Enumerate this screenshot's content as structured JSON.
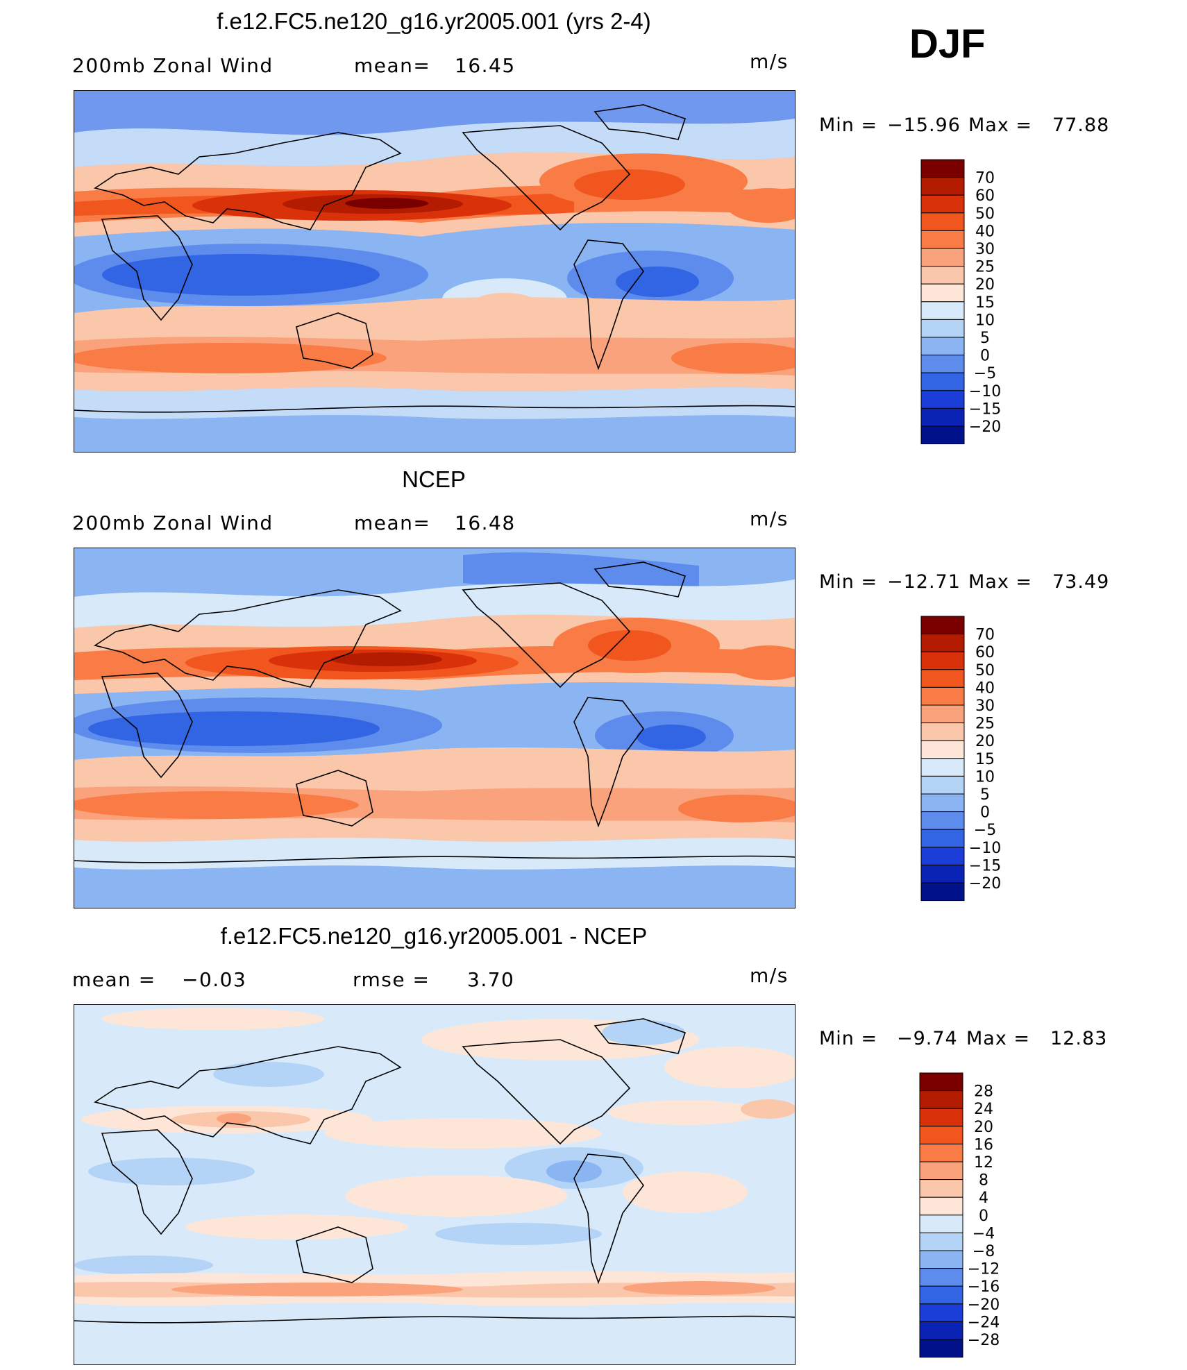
{
  "season": "DJF",
  "panels": [
    {
      "title": "f.e12.FC5.ne120_g16.yr2005.001 (yrs 2-4)",
      "left_label": "200mb Zonal Wind",
      "mid_label": "mean=",
      "mid_value": "16.45",
      "units": "m/s",
      "min_label": "Min  =",
      "min_value": "−15.96",
      "max_label": "Max  =",
      "max_value": "77.88",
      "map_depiction": "model",
      "colorbar": {
        "labels": [
          "70",
          "60",
          "50",
          "40",
          "30",
          "25",
          "20",
          "15",
          "10",
          "5",
          "0",
          "−5",
          "−10",
          "−15",
          "−20"
        ],
        "colors": [
          "#7a0000",
          "#b31c00",
          "#d9320a",
          "#f0561e",
          "#f97c46",
          "#f9a27c",
          "#fbc7ab",
          "#fde6d8",
          "#d8eafa",
          "#b4d4f7",
          "#8bb4f2",
          "#5e8ced",
          "#3265e4",
          "#1a3ed7",
          "#0b23b5",
          "#00118a"
        ]
      }
    },
    {
      "title": "NCEP",
      "left_label": "200mb Zonal Wind",
      "mid_label": "mean=",
      "mid_value": "16.48",
      "units": "m/s",
      "min_label": "Min  =",
      "min_value": "−12.71",
      "max_label": "Max  =",
      "max_value": "73.49",
      "map_depiction": "observation",
      "colorbar": {
        "labels": [
          "70",
          "60",
          "50",
          "40",
          "30",
          "25",
          "20",
          "15",
          "10",
          "5",
          "0",
          "−5",
          "−10",
          "−15",
          "−20"
        ],
        "colors": [
          "#7a0000",
          "#b31c00",
          "#d9320a",
          "#f0561e",
          "#f97c46",
          "#f9a27c",
          "#fbc7ab",
          "#fde6d8",
          "#d8eafa",
          "#b4d4f7",
          "#8bb4f2",
          "#5e8ced",
          "#3265e4",
          "#1a3ed7",
          "#0b23b5",
          "#00118a"
        ]
      }
    },
    {
      "title": "f.e12.FC5.ne120_g16.yr2005.001 - NCEP",
      "left_label": "mean  =",
      "left_value": "−0.03",
      "mid_label": "rmse  =",
      "mid_value": "3.70",
      "units": "m/s",
      "min_label": "Min  =",
      "min_value": "−9.74",
      "max_label": "Max  =",
      "max_value": "12.83",
      "map_depiction": "difference",
      "colorbar": {
        "labels": [
          "28",
          "24",
          "20",
          "16",
          "12",
          "8",
          "4",
          "0",
          "−4",
          "−8",
          "−12",
          "−16",
          "−20",
          "−24",
          "−28"
        ],
        "colors": [
          "#7a0000",
          "#b31c00",
          "#d9320a",
          "#f0561e",
          "#f97c46",
          "#f9a27c",
          "#fbc7ab",
          "#fde6d8",
          "#d8eafa",
          "#b4d4f7",
          "#8bb4f2",
          "#5e8ced",
          "#3265e4",
          "#1a3ed7",
          "#0b23b5",
          "#00118a"
        ]
      }
    }
  ]
}
